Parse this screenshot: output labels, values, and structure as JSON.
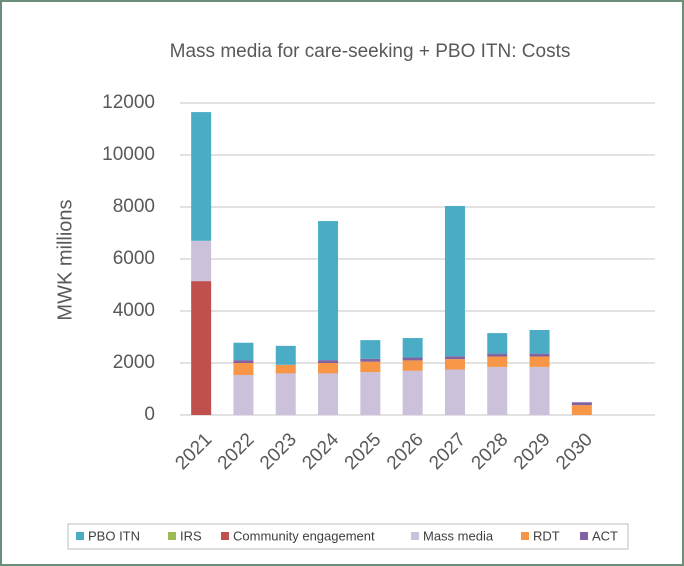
{
  "chart_data": {
    "type": "bar",
    "stacked": true,
    "title": "Mass media for care-seeking + PBO ITN: Costs",
    "y_label": "MWK millions",
    "categories": [
      "2021",
      "2022",
      "2023",
      "2024",
      "2025",
      "2026",
      "2027",
      "2028",
      "2029",
      "2030"
    ],
    "series": [
      {
        "name": "PBO ITN",
        "color": "#4bacc6",
        "values": [
          4950,
          670,
          730,
          5350,
          720,
          750,
          5780,
          790,
          910,
          0
        ]
      },
      {
        "name": "IRS",
        "color": "#9bbb59",
        "values": [
          0,
          0,
          0,
          0,
          0,
          0,
          0,
          0,
          0,
          0
        ]
      },
      {
        "name": "Community engagement",
        "color": "#c0504d",
        "values": [
          5150,
          0,
          0,
          0,
          0,
          0,
          0,
          0,
          0,
          0
        ]
      },
      {
        "name": "Mass media",
        "color": "#ccc1da",
        "values": [
          1550,
          1540,
          1600,
          1600,
          1650,
          1700,
          1750,
          1850,
          1850,
          0
        ]
      },
      {
        "name": "RDT",
        "color": "#f79646",
        "values": [
          0,
          460,
          330,
          400,
          400,
          400,
          400,
          400,
          400,
          380
        ]
      },
      {
        "name": "ACT",
        "color": "#8064a2",
        "values": [
          0,
          110,
          0,
          110,
          110,
          110,
          110,
          110,
          110,
          110
        ]
      }
    ],
    "ylim": [
      0,
      12000
    ],
    "yticks": [
      0,
      2000,
      4000,
      6000,
      8000,
      10000,
      12000
    ],
    "grid": true,
    "legend": "bottom"
  }
}
